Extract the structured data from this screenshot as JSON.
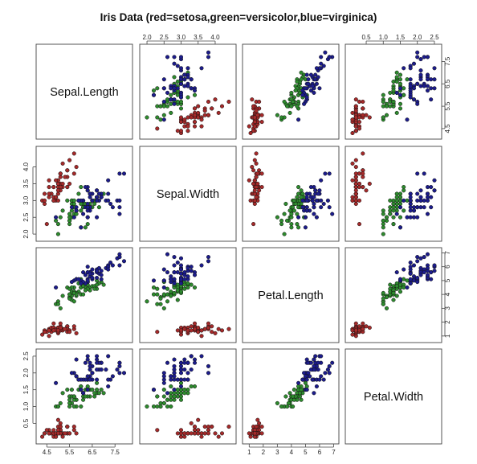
{
  "chart_data": {
    "type": "scatter",
    "title": "Iris Data (red=setosa,green=versicolor,blue=virginica)",
    "variables": [
      "Sepal.Length",
      "Sepal.Width",
      "Petal.Length",
      "Petal.Width"
    ],
    "colors": {
      "setosa": "#a52a2a",
      "versicolor": "#2e8b2e",
      "virginica": "#1c1c8c"
    },
    "axes": {
      "Sepal.Length": {
        "lim": [
          4.2,
          8.1
        ],
        "ticks": [
          "4.5",
          "5.5",
          "6.5",
          "7.5"
        ],
        "tick_positions_note": "",
        "sides": [
          "bottom",
          "right"
        ]
      },
      "Sepal.Width": {
        "lim": [
          1.9,
          4.5
        ],
        "ticks": [
          "2.0",
          "2.5",
          "3.0",
          "3.5",
          "4.0"
        ],
        "sides": [
          "top",
          "left"
        ]
      },
      "Petal.Length": {
        "lim": [
          0.8,
          7.1
        ],
        "ticks": [
          "1",
          "2",
          "3",
          "4",
          "5",
          "6",
          "7"
        ],
        "sides": [
          "bottom",
          "right"
        ]
      },
      "Petal.Width": {
        "lim": [
          0.0,
          2.6
        ],
        "ticks": [
          "0.5",
          "1.0",
          "1.5",
          "2.0",
          "2.5"
        ],
        "sides": [
          "top",
          "left"
        ]
      }
    },
    "species": [
      {
        "name": "setosa",
        "points": [
          [
            5.1,
            3.5,
            1.4,
            0.2
          ],
          [
            4.9,
            3.0,
            1.4,
            0.2
          ],
          [
            4.7,
            3.2,
            1.3,
            0.2
          ],
          [
            4.6,
            3.1,
            1.5,
            0.2
          ],
          [
            5.0,
            3.6,
            1.4,
            0.2
          ],
          [
            5.4,
            3.9,
            1.7,
            0.4
          ],
          [
            4.6,
            3.4,
            1.4,
            0.3
          ],
          [
            5.0,
            3.4,
            1.5,
            0.2
          ],
          [
            4.4,
            2.9,
            1.4,
            0.2
          ],
          [
            4.9,
            3.1,
            1.5,
            0.1
          ],
          [
            5.4,
            3.7,
            1.5,
            0.2
          ],
          [
            4.8,
            3.4,
            1.6,
            0.2
          ],
          [
            4.8,
            3.0,
            1.4,
            0.1
          ],
          [
            4.3,
            3.0,
            1.1,
            0.1
          ],
          [
            5.8,
            4.0,
            1.2,
            0.2
          ],
          [
            5.7,
            4.4,
            1.5,
            0.4
          ],
          [
            5.4,
            3.9,
            1.3,
            0.4
          ],
          [
            5.1,
            3.5,
            1.4,
            0.3
          ],
          [
            5.7,
            3.8,
            1.7,
            0.3
          ],
          [
            5.1,
            3.8,
            1.5,
            0.3
          ],
          [
            5.4,
            3.4,
            1.7,
            0.2
          ],
          [
            5.1,
            3.7,
            1.5,
            0.4
          ],
          [
            4.6,
            3.6,
            1.0,
            0.2
          ],
          [
            5.1,
            3.3,
            1.7,
            0.5
          ],
          [
            4.8,
            3.4,
            1.9,
            0.2
          ],
          [
            5.0,
            3.0,
            1.6,
            0.2
          ],
          [
            5.0,
            3.4,
            1.6,
            0.4
          ],
          [
            5.2,
            3.5,
            1.5,
            0.2
          ],
          [
            5.2,
            3.4,
            1.4,
            0.2
          ],
          [
            4.7,
            3.2,
            1.6,
            0.2
          ],
          [
            4.8,
            3.1,
            1.6,
            0.2
          ],
          [
            5.4,
            3.4,
            1.5,
            0.4
          ],
          [
            5.2,
            4.1,
            1.5,
            0.1
          ],
          [
            5.5,
            4.2,
            1.4,
            0.2
          ],
          [
            4.9,
            3.1,
            1.5,
            0.2
          ],
          [
            5.0,
            3.2,
            1.2,
            0.2
          ],
          [
            5.5,
            3.5,
            1.3,
            0.2
          ],
          [
            4.9,
            3.6,
            1.4,
            0.1
          ],
          [
            4.4,
            3.0,
            1.3,
            0.2
          ],
          [
            5.1,
            3.4,
            1.5,
            0.2
          ],
          [
            5.0,
            3.5,
            1.3,
            0.3
          ],
          [
            4.5,
            2.3,
            1.3,
            0.3
          ],
          [
            4.4,
            3.2,
            1.3,
            0.2
          ],
          [
            5.0,
            3.5,
            1.6,
            0.6
          ],
          [
            5.1,
            3.8,
            1.9,
            0.4
          ],
          [
            4.8,
            3.0,
            1.4,
            0.3
          ],
          [
            5.1,
            3.8,
            1.6,
            0.2
          ],
          [
            4.6,
            3.2,
            1.4,
            0.2
          ],
          [
            5.3,
            3.7,
            1.5,
            0.2
          ],
          [
            5.0,
            3.3,
            1.4,
            0.2
          ]
        ]
      },
      {
        "name": "versicolor",
        "points": [
          [
            7.0,
            3.2,
            4.7,
            1.4
          ],
          [
            6.4,
            3.2,
            4.5,
            1.5
          ],
          [
            6.9,
            3.1,
            4.9,
            1.5
          ],
          [
            5.5,
            2.3,
            4.0,
            1.3
          ],
          [
            6.5,
            2.8,
            4.6,
            1.5
          ],
          [
            5.7,
            2.8,
            4.5,
            1.3
          ],
          [
            6.3,
            3.3,
            4.7,
            1.6
          ],
          [
            4.9,
            2.4,
            3.3,
            1.0
          ],
          [
            6.6,
            2.9,
            4.6,
            1.3
          ],
          [
            5.2,
            2.7,
            3.9,
            1.4
          ],
          [
            5.0,
            2.0,
            3.5,
            1.0
          ],
          [
            5.9,
            3.0,
            4.2,
            1.5
          ],
          [
            6.0,
            2.2,
            4.0,
            1.0
          ],
          [
            6.1,
            2.9,
            4.7,
            1.4
          ],
          [
            5.6,
            2.9,
            3.6,
            1.3
          ],
          [
            6.7,
            3.1,
            4.4,
            1.4
          ],
          [
            5.6,
            3.0,
            4.5,
            1.5
          ],
          [
            5.8,
            2.7,
            4.1,
            1.0
          ],
          [
            6.2,
            2.2,
            4.5,
            1.5
          ],
          [
            5.6,
            2.5,
            3.9,
            1.1
          ],
          [
            5.9,
            3.2,
            4.8,
            1.8
          ],
          [
            6.1,
            2.8,
            4.0,
            1.3
          ],
          [
            6.3,
            2.5,
            4.9,
            1.5
          ],
          [
            6.1,
            2.8,
            4.7,
            1.2
          ],
          [
            6.4,
            2.9,
            4.3,
            1.3
          ],
          [
            6.6,
            3.0,
            4.4,
            1.4
          ],
          [
            6.8,
            2.8,
            4.8,
            1.4
          ],
          [
            6.7,
            3.0,
            5.0,
            1.7
          ],
          [
            6.0,
            2.9,
            4.5,
            1.5
          ],
          [
            5.7,
            2.6,
            3.5,
            1.0
          ],
          [
            5.5,
            2.4,
            3.8,
            1.1
          ],
          [
            5.5,
            2.4,
            3.7,
            1.0
          ],
          [
            5.8,
            2.7,
            3.9,
            1.2
          ],
          [
            6.0,
            2.7,
            5.1,
            1.6
          ],
          [
            5.4,
            3.0,
            4.5,
            1.5
          ],
          [
            6.0,
            3.4,
            4.5,
            1.6
          ],
          [
            6.7,
            3.1,
            4.7,
            1.5
          ],
          [
            6.3,
            2.3,
            4.4,
            1.3
          ],
          [
            5.6,
            3.0,
            4.1,
            1.3
          ],
          [
            5.5,
            2.5,
            4.0,
            1.3
          ],
          [
            5.5,
            2.6,
            4.4,
            1.2
          ],
          [
            6.1,
            3.0,
            4.6,
            1.4
          ],
          [
            5.8,
            2.6,
            4.0,
            1.2
          ],
          [
            5.0,
            2.3,
            3.3,
            1.0
          ],
          [
            5.6,
            2.7,
            4.2,
            1.3
          ],
          [
            5.7,
            3.0,
            4.2,
            1.2
          ],
          [
            5.7,
            2.9,
            4.2,
            1.3
          ],
          [
            6.2,
            2.9,
            4.3,
            1.3
          ],
          [
            5.1,
            2.5,
            3.0,
            1.1
          ],
          [
            5.7,
            2.8,
            4.1,
            1.3
          ]
        ]
      },
      {
        "name": "virginica",
        "points": [
          [
            6.3,
            3.3,
            6.0,
            2.5
          ],
          [
            5.8,
            2.7,
            5.1,
            1.9
          ],
          [
            7.1,
            3.0,
            5.9,
            2.1
          ],
          [
            6.3,
            2.9,
            5.6,
            1.8
          ],
          [
            6.5,
            3.0,
            5.8,
            2.2
          ],
          [
            7.6,
            3.0,
            6.6,
            2.1
          ],
          [
            4.9,
            2.5,
            4.5,
            1.7
          ],
          [
            7.3,
            2.9,
            6.3,
            1.8
          ],
          [
            6.7,
            2.5,
            5.8,
            1.8
          ],
          [
            7.2,
            3.6,
            6.1,
            2.5
          ],
          [
            6.5,
            3.2,
            5.1,
            2.0
          ],
          [
            6.4,
            2.7,
            5.3,
            1.9
          ],
          [
            6.8,
            3.0,
            5.5,
            2.1
          ],
          [
            5.7,
            2.5,
            5.0,
            2.0
          ],
          [
            5.8,
            2.8,
            5.1,
            2.4
          ],
          [
            6.4,
            3.2,
            5.3,
            2.3
          ],
          [
            6.5,
            3.0,
            5.5,
            1.8
          ],
          [
            7.7,
            3.8,
            6.7,
            2.2
          ],
          [
            7.7,
            2.6,
            6.9,
            2.3
          ],
          [
            6.0,
            2.2,
            5.0,
            1.5
          ],
          [
            6.9,
            3.2,
            5.7,
            2.3
          ],
          [
            5.6,
            2.8,
            4.9,
            2.0
          ],
          [
            7.7,
            2.8,
            6.7,
            2.0
          ],
          [
            6.3,
            2.7,
            4.9,
            1.8
          ],
          [
            6.7,
            3.3,
            5.7,
            2.1
          ],
          [
            7.2,
            3.2,
            6.0,
            1.8
          ],
          [
            6.2,
            2.8,
            4.8,
            1.8
          ],
          [
            6.1,
            3.0,
            4.9,
            1.8
          ],
          [
            6.4,
            2.8,
            5.6,
            2.1
          ],
          [
            7.2,
            3.0,
            5.8,
            1.6
          ],
          [
            7.4,
            2.8,
            6.1,
            1.9
          ],
          [
            7.9,
            3.8,
            6.4,
            2.0
          ],
          [
            6.4,
            2.8,
            5.6,
            2.2
          ],
          [
            6.3,
            2.8,
            5.1,
            1.5
          ],
          [
            6.1,
            2.6,
            5.6,
            1.4
          ],
          [
            7.7,
            3.0,
            6.1,
            2.3
          ],
          [
            6.3,
            3.4,
            5.6,
            2.4
          ],
          [
            6.4,
            3.1,
            5.5,
            1.8
          ],
          [
            6.0,
            3.0,
            4.8,
            1.8
          ],
          [
            6.9,
            3.1,
            5.4,
            2.1
          ],
          [
            6.7,
            3.1,
            5.6,
            2.4
          ],
          [
            6.9,
            3.1,
            5.1,
            2.3
          ],
          [
            5.8,
            2.7,
            5.1,
            1.9
          ],
          [
            6.8,
            3.2,
            5.9,
            2.3
          ],
          [
            6.7,
            3.3,
            5.7,
            2.5
          ],
          [
            6.7,
            3.0,
            5.2,
            2.3
          ],
          [
            6.3,
            2.5,
            5.0,
            1.9
          ],
          [
            6.5,
            3.0,
            5.2,
            2.0
          ],
          [
            6.2,
            3.4,
            5.4,
            2.3
          ],
          [
            5.9,
            3.0,
            5.1,
            1.8
          ]
        ]
      }
    ]
  }
}
